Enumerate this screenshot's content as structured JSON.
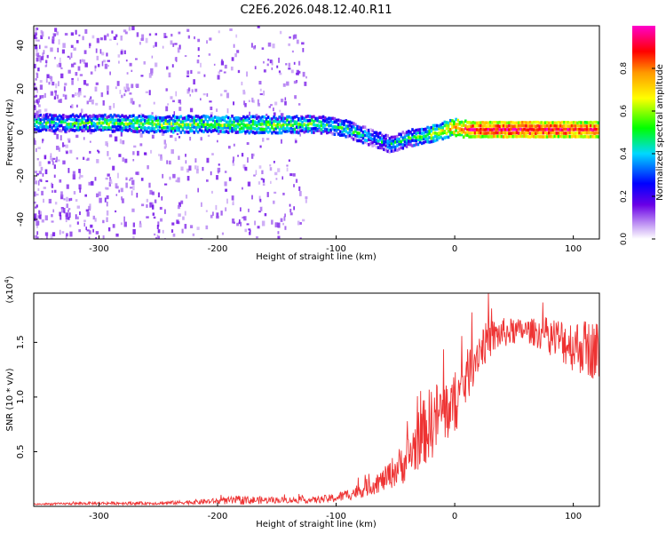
{
  "title": "C2E6.2026.048.12.40.R11",
  "chart_data": [
    {
      "type": "heatmap",
      "xlabel": "Height of straight line (km)",
      "ylabel": "Frequency (Hz)",
      "xlim": [
        -355,
        122
      ],
      "ylim": [
        -49,
        49
      ],
      "xticks": [
        -300,
        -200,
        -100,
        0,
        100
      ],
      "yticks": [
        -40,
        -20,
        0,
        20,
        40
      ],
      "colorbar": {
        "label": "Normalized spectral amplitude",
        "range": [
          0.0,
          1.0
        ],
        "ticks": [
          0.0,
          0.2,
          0.4,
          0.6,
          0.8
        ],
        "tick_labels": [
          "0.0",
          "0.2",
          "0.4",
          "0.6",
          "0.8"
        ],
        "colormap": "rainbow (white→violet→blue→cyan→green→yellow→red→magenta)"
      },
      "ridge": {
        "description": "dominant frequency band vs. height",
        "x": [
          -345,
          -300,
          -250,
          -200,
          -150,
          -120,
          -100,
          -90,
          -70,
          -55,
          -40,
          -20,
          -5,
          0,
          10,
          60,
          122
        ],
        "y": [
          5,
          5,
          4.5,
          4.5,
          4,
          4.5,
          3.5,
          2,
          -2,
          -5,
          -2,
          0,
          2.5,
          3,
          2,
          2,
          2
        ],
        "amplitude": [
          0.45,
          0.5,
          0.55,
          0.55,
          0.55,
          0.5,
          0.45,
          0.45,
          0.4,
          0.4,
          0.45,
          0.6,
          0.7,
          0.75,
          0.9,
          0.95,
          0.85
        ]
      }
    },
    {
      "type": "line",
      "xlabel": "Height of straight line (km)",
      "ylabel": "SNR (10 * v/v)",
      "yscale_label": "(x10",
      "yscale_exp": "4",
      "xlim": [
        -355,
        122
      ],
      "ylim": [
        0,
        1.95
      ],
      "xticks": [
        -300,
        -200,
        -100,
        0,
        100
      ],
      "yticks": [
        0.5,
        1.0,
        1.5
      ],
      "ytick_labels": [
        "0.5",
        "1.0",
        "1.5"
      ],
      "color": "#ee3333",
      "series": [
        {
          "name": "SNR",
          "x": [
            -355,
            -300,
            -250,
            -200,
            -180,
            -150,
            -120,
            -100,
            -80,
            -60,
            -40,
            -30,
            -20,
            -10,
            0,
            10,
            20,
            30,
            40,
            60,
            80,
            100,
            122
          ],
          "y": [
            0.02,
            0.03,
            0.03,
            0.05,
            0.06,
            0.06,
            0.06,
            0.08,
            0.15,
            0.25,
            0.45,
            0.65,
            0.8,
            0.9,
            0.95,
            1.2,
            1.45,
            1.55,
            1.6,
            1.62,
            1.58,
            1.5,
            1.45
          ],
          "noise": [
            0.01,
            0.02,
            0.02,
            0.04,
            0.06,
            0.04,
            0.04,
            0.06,
            0.1,
            0.15,
            0.3,
            0.4,
            0.5,
            0.45,
            0.4,
            0.35,
            0.3,
            0.25,
            0.2,
            0.15,
            0.25,
            0.35,
            0.4
          ]
        }
      ]
    }
  ]
}
